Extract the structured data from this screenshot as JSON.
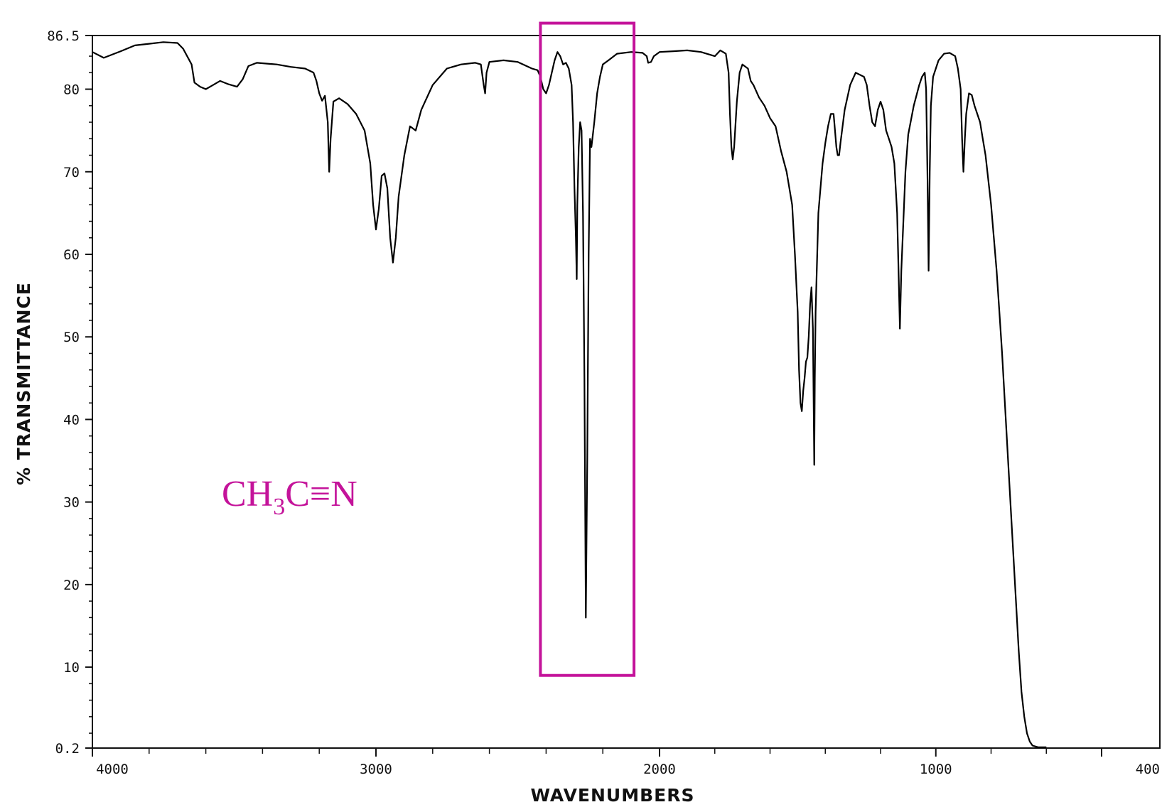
{
  "chart_data": {
    "type": "line",
    "title": "",
    "xlabel": "WAVENUMBERS",
    "ylabel": "% TRANSMITTANCE",
    "x_scale": "split-linear (4000–2000 compressed, 2000–400 expanded)",
    "xlim": [
      4000,
      400
    ],
    "ylim": [
      0.2,
      86.5
    ],
    "x_tick_labels": [
      "4000",
      "3000",
      "2000",
      "1000",
      "400"
    ],
    "y_tick_labels": [
      "86.5",
      "80",
      "70",
      "60",
      "50",
      "40",
      "30",
      "20",
      "10",
      "0.2"
    ],
    "grid": false,
    "legend": "none",
    "annotation": {
      "formula_parts": [
        "CH",
        "3",
        "C≡N"
      ],
      "highlight_box_x_range": [
        2420,
        2090
      ],
      "highlight_box_y_range": [
        9,
        88
      ],
      "color": "#c4139a"
    },
    "series": [
      {
        "line_color": "#000000",
        "points": [
          [
            4000,
            84.5
          ],
          [
            3960,
            83.8
          ],
          [
            3900,
            84.6
          ],
          [
            3850,
            85.3
          ],
          [
            3800,
            85.5
          ],
          [
            3750,
            85.7
          ],
          [
            3700,
            85.6
          ],
          [
            3680,
            84.9
          ],
          [
            3650,
            83.0
          ],
          [
            3640,
            80.8
          ],
          [
            3620,
            80.3
          ],
          [
            3600,
            80.0
          ],
          [
            3580,
            80.4
          ],
          [
            3550,
            81.0
          ],
          [
            3520,
            80.6
          ],
          [
            3490,
            80.3
          ],
          [
            3470,
            81.2
          ],
          [
            3450,
            82.8
          ],
          [
            3420,
            83.2
          ],
          [
            3350,
            83.0
          ],
          [
            3300,
            82.7
          ],
          [
            3250,
            82.5
          ],
          [
            3220,
            82.0
          ],
          [
            3210,
            81.0
          ],
          [
            3200,
            79.5
          ],
          [
            3190,
            78.6
          ],
          [
            3180,
            79.2
          ],
          [
            3170,
            76.0
          ],
          [
            3165,
            70.0
          ],
          [
            3160,
            74.0
          ],
          [
            3150,
            78.5
          ],
          [
            3130,
            78.9
          ],
          [
            3100,
            78.2
          ],
          [
            3070,
            77.0
          ],
          [
            3040,
            75.0
          ],
          [
            3020,
            71.0
          ],
          [
            3010,
            66.0
          ],
          [
            3000,
            63.0
          ],
          [
            2990,
            65.5
          ],
          [
            2980,
            69.5
          ],
          [
            2970,
            69.8
          ],
          [
            2960,
            68.0
          ],
          [
            2950,
            62.0
          ],
          [
            2940,
            59.0
          ],
          [
            2930,
            62.0
          ],
          [
            2920,
            67.0
          ],
          [
            2900,
            72.0
          ],
          [
            2880,
            75.5
          ],
          [
            2860,
            75.0
          ],
          [
            2840,
            77.5
          ],
          [
            2800,
            80.5
          ],
          [
            2750,
            82.5
          ],
          [
            2700,
            83.0
          ],
          [
            2650,
            83.2
          ],
          [
            2630,
            83.0
          ],
          [
            2620,
            80.5
          ],
          [
            2615,
            79.5
          ],
          [
            2610,
            82.0
          ],
          [
            2600,
            83.3
          ],
          [
            2550,
            83.5
          ],
          [
            2500,
            83.3
          ],
          [
            2450,
            82.5
          ],
          [
            2430,
            82.3
          ],
          [
            2420,
            81.5
          ],
          [
            2410,
            80.0
          ],
          [
            2400,
            79.5
          ],
          [
            2390,
            80.5
          ],
          [
            2380,
            82.0
          ],
          [
            2370,
            83.5
          ],
          [
            2360,
            84.5
          ],
          [
            2350,
            84.0
          ],
          [
            2340,
            83.0
          ],
          [
            2330,
            83.2
          ],
          [
            2320,
            82.5
          ],
          [
            2310,
            80.5
          ],
          [
            2305,
            76.0
          ],
          [
            2300,
            68.0
          ],
          [
            2295,
            62.0
          ],
          [
            2292,
            57.0
          ],
          [
            2290,
            66.0
          ],
          [
            2285,
            73.0
          ],
          [
            2280,
            76.0
          ],
          [
            2275,
            75.0
          ],
          [
            2270,
            65.0
          ],
          [
            2265,
            45.0
          ],
          [
            2260,
            16.0
          ],
          [
            2255,
            35.0
          ],
          [
            2250,
            60.0
          ],
          [
            2245,
            74.0
          ],
          [
            2240,
            73.0
          ],
          [
            2230,
            76.0
          ],
          [
            2220,
            79.5
          ],
          [
            2210,
            81.5
          ],
          [
            2200,
            83.0
          ],
          [
            2180,
            83.5
          ],
          [
            2150,
            84.3
          ],
          [
            2100,
            84.5
          ],
          [
            2060,
            84.4
          ],
          [
            2045,
            84.0
          ],
          [
            2040,
            83.2
          ],
          [
            2030,
            83.3
          ],
          [
            2020,
            84.0
          ],
          [
            2000,
            84.5
          ],
          [
            1950,
            84.6
          ],
          [
            1900,
            84.7
          ],
          [
            1850,
            84.5
          ],
          [
            1800,
            84.0
          ],
          [
            1780,
            84.7
          ],
          [
            1760,
            84.3
          ],
          [
            1750,
            82.0
          ],
          [
            1745,
            77.0
          ],
          [
            1740,
            73.0
          ],
          [
            1735,
            71.5
          ],
          [
            1730,
            73.0
          ],
          [
            1720,
            78.5
          ],
          [
            1710,
            82.0
          ],
          [
            1700,
            83.0
          ],
          [
            1680,
            82.5
          ],
          [
            1670,
            81.0
          ],
          [
            1660,
            80.5
          ],
          [
            1640,
            79.0
          ],
          [
            1620,
            78.0
          ],
          [
            1600,
            76.5
          ],
          [
            1580,
            75.5
          ],
          [
            1560,
            72.5
          ],
          [
            1540,
            70.0
          ],
          [
            1520,
            66.0
          ],
          [
            1510,
            60.0
          ],
          [
            1500,
            53.0
          ],
          [
            1495,
            46.0
          ],
          [
            1490,
            42.0
          ],
          [
            1485,
            41.0
          ],
          [
            1480,
            43.5
          ],
          [
            1475,
            45.0
          ],
          [
            1470,
            47.0
          ],
          [
            1465,
            47.5
          ],
          [
            1460,
            50.0
          ],
          [
            1455,
            54.0
          ],
          [
            1450,
            56.0
          ],
          [
            1445,
            51.0
          ],
          [
            1440,
            34.5
          ],
          [
            1438,
            45.0
          ],
          [
            1435,
            53.0
          ],
          [
            1425,
            65.0
          ],
          [
            1410,
            71.0
          ],
          [
            1400,
            73.5
          ],
          [
            1390,
            75.5
          ],
          [
            1380,
            77.0
          ],
          [
            1370,
            77.0
          ],
          [
            1365,
            75.0
          ],
          [
            1360,
            73.0
          ],
          [
            1355,
            72.0
          ],
          [
            1350,
            72.0
          ],
          [
            1345,
            73.5
          ],
          [
            1330,
            77.5
          ],
          [
            1310,
            80.5
          ],
          [
            1290,
            82.0
          ],
          [
            1260,
            81.5
          ],
          [
            1250,
            80.5
          ],
          [
            1240,
            78.0
          ],
          [
            1230,
            76.0
          ],
          [
            1220,
            75.5
          ],
          [
            1210,
            77.5
          ],
          [
            1200,
            78.5
          ],
          [
            1190,
            77.5
          ],
          [
            1180,
            75.0
          ],
          [
            1170,
            74.0
          ],
          [
            1160,
            73.0
          ],
          [
            1150,
            71.0
          ],
          [
            1140,
            65.0
          ],
          [
            1135,
            58.0
          ],
          [
            1130,
            51.0
          ],
          [
            1125,
            58.0
          ],
          [
            1110,
            70.0
          ],
          [
            1100,
            74.5
          ],
          [
            1080,
            78.0
          ],
          [
            1060,
            80.5
          ],
          [
            1050,
            81.5
          ],
          [
            1040,
            82.0
          ],
          [
            1035,
            80.0
          ],
          [
            1030,
            69.0
          ],
          [
            1026,
            58.0
          ],
          [
            1022,
            70.0
          ],
          [
            1018,
            78.0
          ],
          [
            1010,
            81.5
          ],
          [
            990,
            83.5
          ],
          [
            970,
            84.3
          ],
          [
            950,
            84.4
          ],
          [
            930,
            84.0
          ],
          [
            920,
            82.5
          ],
          [
            910,
            80.0
          ],
          [
            905,
            74.0
          ],
          [
            900,
            70.0
          ],
          [
            895,
            74.0
          ],
          [
            890,
            77.0
          ],
          [
            880,
            79.5
          ],
          [
            870,
            79.3
          ],
          [
            860,
            78.0
          ],
          [
            850,
            77.0
          ],
          [
            840,
            76.0
          ],
          [
            830,
            74.0
          ],
          [
            820,
            72.0
          ],
          [
            810,
            69.0
          ],
          [
            800,
            66.0
          ],
          [
            790,
            62.0
          ],
          [
            780,
            58.0
          ],
          [
            770,
            53.0
          ],
          [
            760,
            48.0
          ],
          [
            750,
            42.0
          ],
          [
            740,
            36.0
          ],
          [
            730,
            30.0
          ],
          [
            720,
            24.0
          ],
          [
            710,
            18.0
          ],
          [
            700,
            12.0
          ],
          [
            690,
            7.0
          ],
          [
            680,
            4.0
          ],
          [
            670,
            2.0
          ],
          [
            660,
            1.0
          ],
          [
            650,
            0.5
          ],
          [
            630,
            0.3
          ],
          [
            600,
            0.3
          ]
        ]
      }
    ]
  }
}
